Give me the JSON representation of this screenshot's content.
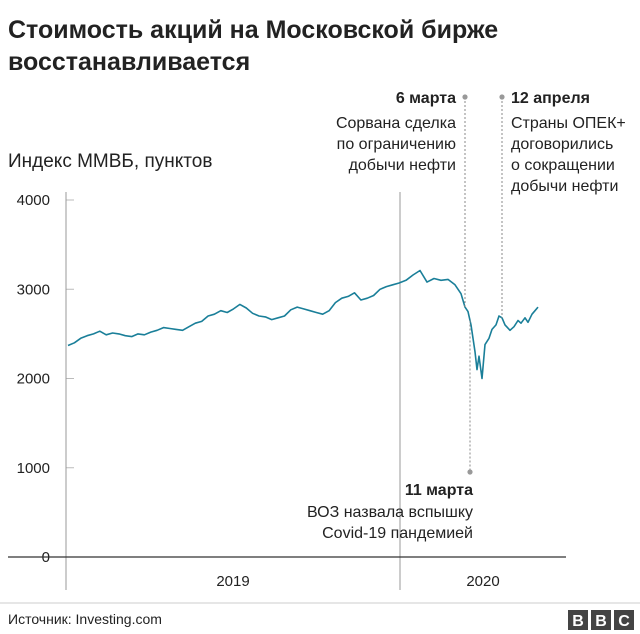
{
  "chart_data": {
    "type": "line",
    "title": "Стоимость акций на Московской бирже восстанавливается",
    "title_lines": [
      "Стоимость акций на Московской бирже",
      "восстанавливается"
    ],
    "subtitle": "Индекс ММВБ, пунктов",
    "y_ticks": [
      0,
      1000,
      2000,
      3000,
      4000
    ],
    "ylim": [
      0,
      4000
    ],
    "x_tick_labels": [
      "2019",
      "2020"
    ],
    "x_range": [
      "2019-01-01",
      "2020-05-20"
    ],
    "year_boundary": "2020-01-01",
    "grid": false,
    "series": [
      {
        "color": "#1a7f99",
        "points": [
          [
            "2019-01-01",
            2370
          ],
          [
            "2019-01-08",
            2400
          ],
          [
            "2019-01-15",
            2450
          ],
          [
            "2019-01-22",
            2480
          ],
          [
            "2019-01-29",
            2500
          ],
          [
            "2019-02-05",
            2530
          ],
          [
            "2019-02-12",
            2490
          ],
          [
            "2019-02-19",
            2510
          ],
          [
            "2019-02-26",
            2500
          ],
          [
            "2019-03-05",
            2480
          ],
          [
            "2019-03-12",
            2470
          ],
          [
            "2019-03-19",
            2500
          ],
          [
            "2019-03-26",
            2490
          ],
          [
            "2019-04-02",
            2520
          ],
          [
            "2019-04-09",
            2540
          ],
          [
            "2019-04-16",
            2570
          ],
          [
            "2019-04-23",
            2560
          ],
          [
            "2019-04-30",
            2550
          ],
          [
            "2019-05-07",
            2540
          ],
          [
            "2019-05-14",
            2580
          ],
          [
            "2019-05-21",
            2620
          ],
          [
            "2019-05-28",
            2640
          ],
          [
            "2019-06-04",
            2700
          ],
          [
            "2019-06-11",
            2720
          ],
          [
            "2019-06-18",
            2760
          ],
          [
            "2019-06-25",
            2740
          ],
          [
            "2019-07-02",
            2780
          ],
          [
            "2019-07-09",
            2830
          ],
          [
            "2019-07-16",
            2790
          ],
          [
            "2019-07-23",
            2730
          ],
          [
            "2019-07-30",
            2700
          ],
          [
            "2019-08-06",
            2690
          ],
          [
            "2019-08-13",
            2660
          ],
          [
            "2019-08-20",
            2680
          ],
          [
            "2019-08-27",
            2700
          ],
          [
            "2019-09-03",
            2770
          ],
          [
            "2019-09-10",
            2800
          ],
          [
            "2019-09-17",
            2780
          ],
          [
            "2019-09-24",
            2760
          ],
          [
            "2019-10-01",
            2740
          ],
          [
            "2019-10-08",
            2720
          ],
          [
            "2019-10-15",
            2760
          ],
          [
            "2019-10-22",
            2850
          ],
          [
            "2019-10-29",
            2900
          ],
          [
            "2019-11-05",
            2920
          ],
          [
            "2019-11-12",
            2960
          ],
          [
            "2019-11-19",
            2880
          ],
          [
            "2019-11-26",
            2900
          ],
          [
            "2019-12-03",
            2930
          ],
          [
            "2019-12-10",
            3000
          ],
          [
            "2019-12-17",
            3030
          ],
          [
            "2019-12-24",
            3050
          ],
          [
            "2019-12-31",
            3070
          ],
          [
            "2020-01-07",
            3100
          ],
          [
            "2020-01-14",
            3160
          ],
          [
            "2020-01-21",
            3210
          ],
          [
            "2020-01-28",
            3080
          ],
          [
            "2020-02-04",
            3120
          ],
          [
            "2020-02-11",
            3100
          ],
          [
            "2020-02-18",
            3110
          ],
          [
            "2020-02-25",
            3050
          ],
          [
            "2020-03-02",
            2950
          ],
          [
            "2020-03-06",
            2800
          ],
          [
            "2020-03-09",
            2750
          ],
          [
            "2020-03-12",
            2600
          ],
          [
            "2020-03-16",
            2300
          ],
          [
            "2020-03-18",
            2100
          ],
          [
            "2020-03-20",
            2250
          ],
          [
            "2020-03-23",
            2000
          ],
          [
            "2020-03-26",
            2380
          ],
          [
            "2020-03-30",
            2450
          ],
          [
            "2020-04-02",
            2550
          ],
          [
            "2020-04-06",
            2600
          ],
          [
            "2020-04-09",
            2700
          ],
          [
            "2020-04-12",
            2680
          ],
          [
            "2020-04-15",
            2600
          ],
          [
            "2020-04-20",
            2540
          ],
          [
            "2020-04-24",
            2580
          ],
          [
            "2020-04-28",
            2650
          ],
          [
            "2020-05-01",
            2620
          ],
          [
            "2020-05-05",
            2680
          ],
          [
            "2020-05-08",
            2630
          ],
          [
            "2020-05-12",
            2720
          ],
          [
            "2020-05-15",
            2760
          ],
          [
            "2020-05-18",
            2800
          ]
        ]
      }
    ],
    "annotations": [
      {
        "date": "2020-03-06",
        "title": "6 марта",
        "lines": [
          "Сорвана сделка",
          "по ограничению",
          "добычи нефти"
        ],
        "position": "above-left"
      },
      {
        "date": "2020-04-12",
        "title": "12 апреля",
        "lines": [
          "Страны ОПЕК+",
          "договорились",
          "о сокращении",
          "добычи нефти"
        ],
        "position": "above-right"
      },
      {
        "date": "2020-03-11",
        "title": "11 марта",
        "lines": [
          "ВОЗ назвала вспышку",
          "Covid-19 пандемией"
        ],
        "position": "below-left"
      }
    ]
  },
  "footer": {
    "source": "Источник: Investing.com",
    "logo": "BBC"
  }
}
